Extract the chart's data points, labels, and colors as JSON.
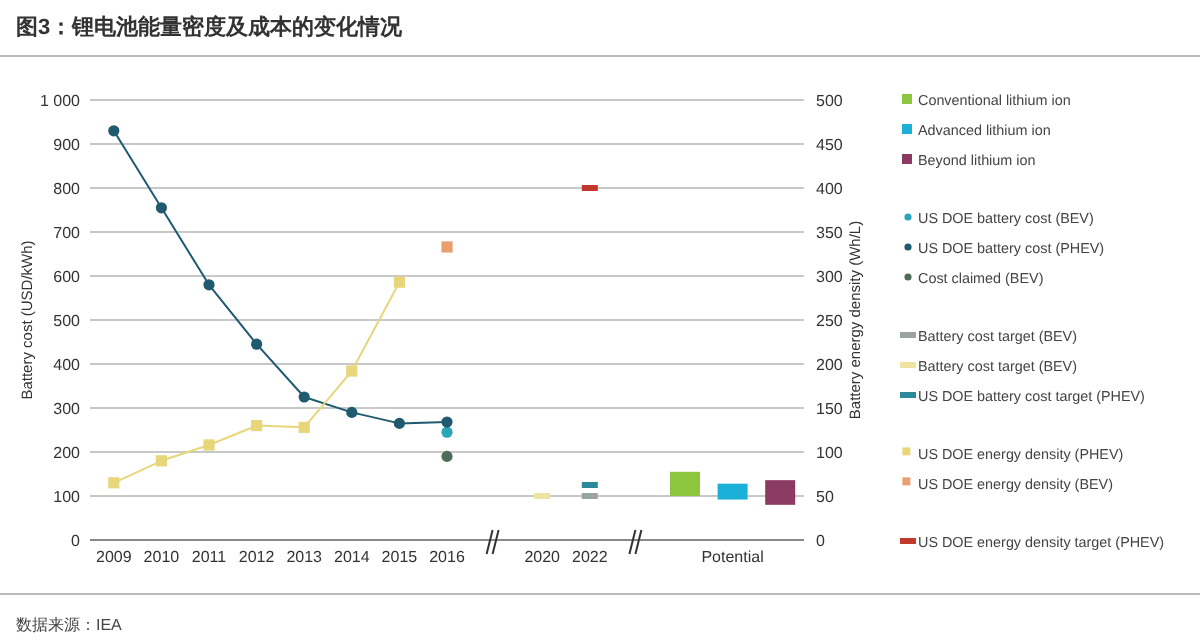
{
  "chart_data": {
    "type": "scatter",
    "title": "图3：锂电池能量密度及成本的变化情况",
    "ylabel": "Battery cost (USD/kWh)",
    "y2label": "Battery energy density (Wh/L)",
    "annotations": [
      "数据来源：IEA"
    ],
    "categories": [
      "2009",
      "2010",
      "2011",
      "2012",
      "2013",
      "2014",
      "2015",
      "2016",
      null,
      "2020",
      "2022",
      null,
      null,
      "Potential",
      null
    ],
    "ylim": [
      0,
      1000
    ],
    "yticks": [
      0,
      100,
      200,
      300,
      400,
      500,
      600,
      700,
      800,
      900,
      {
        "value": 1000,
        "label": "1 000"
      }
    ],
    "y2lim": [
      0,
      500
    ],
    "y2ticks": [
      0,
      50,
      100,
      150,
      200,
      250,
      300,
      350,
      400,
      450,
      500
    ],
    "grid": "y",
    "legend": "right",
    "series": [
      {
        "name": "Conventional lithium ion",
        "type": "bar",
        "color": "#8cc63f",
        "values": [
          null,
          null,
          null,
          null,
          null,
          null,
          null,
          null,
          null,
          null,
          null,
          null,
          55,
          null,
          null
        ],
        "base": [
          null,
          null,
          null,
          null,
          null,
          null,
          null,
          null,
          null,
          null,
          null,
          null,
          100,
          null,
          null
        ]
      },
      {
        "name": "Advanced lithium ion",
        "type": "bar",
        "color": "#1ab0d8",
        "values": [
          null,
          null,
          null,
          null,
          null,
          null,
          null,
          null,
          null,
          null,
          null,
          null,
          null,
          36,
          null
        ],
        "base": [
          null,
          null,
          null,
          null,
          null,
          null,
          null,
          null,
          null,
          null,
          null,
          null,
          null,
          92,
          null
        ]
      },
      {
        "name": "Beyond lithium ion",
        "type": "bar",
        "color": "#8b3a62",
        "values": [
          null,
          null,
          null,
          null,
          null,
          null,
          null,
          null,
          null,
          null,
          null,
          null,
          null,
          null,
          56
        ],
        "base": [
          null,
          null,
          null,
          null,
          null,
          null,
          null,
          null,
          null,
          null,
          null,
          null,
          null,
          null,
          80
        ]
      },
      {
        "name": "US DOE battery cost (BEV)",
        "marker": "circle",
        "color": "#2aa6b8",
        "values": [
          null,
          null,
          null,
          null,
          null,
          null,
          null,
          245,
          null,
          null,
          null,
          null,
          null,
          null,
          null
        ]
      },
      {
        "name": "US DOE battery cost (PHEV)",
        "type": "line",
        "marker": "circle",
        "color": "#1f5a6e",
        "values": [
          930,
          755,
          580,
          445,
          325,
          290,
          265,
          268,
          null,
          null,
          null,
          null,
          null,
          null,
          null
        ]
      },
      {
        "name": "Cost claimed (BEV)",
        "marker": "circle",
        "color": "#4e6b57",
        "values": [
          null,
          null,
          null,
          null,
          null,
          null,
          null,
          190,
          null,
          null,
          null,
          null,
          null,
          null,
          null
        ]
      },
      {
        "name": "Battery cost target (BEV)",
        "color": "#9aa5a0",
        "values": [
          null,
          null,
          null,
          null,
          null,
          null,
          null,
          null,
          null,
          null,
          100,
          null,
          null,
          null,
          null
        ]
      },
      {
        "name": "Battery cost target (BEV)",
        "color": "#eee3a0",
        "values": [
          null,
          null,
          null,
          null,
          null,
          null,
          null,
          null,
          null,
          100,
          null,
          null,
          null,
          null,
          null
        ]
      },
      {
        "name": "US DOE battery cost target (PHEV)",
        "color": "#2a8a9a",
        "values": [
          null,
          null,
          null,
          null,
          null,
          null,
          null,
          null,
          null,
          null,
          125,
          null,
          null,
          null,
          null
        ]
      },
      {
        "name": "US DOE energy density (PHEV)",
        "type": "line",
        "marker": "square",
        "axis": "y2",
        "color": "#e8d67a",
        "values": [
          65,
          90,
          108,
          130,
          128,
          192,
          293,
          null,
          null,
          null,
          null,
          null,
          null,
          null,
          null
        ]
      },
      {
        "name": "US DOE energy density (BEV)",
        "marker": "square",
        "axis": "y2",
        "color": "#e8a070",
        "values": [
          null,
          null,
          null,
          null,
          null,
          null,
          null,
          333,
          null,
          null,
          null,
          null,
          null,
          null,
          null
        ]
      },
      {
        "name": "US DOE energy density target (PHEV)",
        "axis": "y2",
        "color": "#c0392b",
        "values": [
          null,
          null,
          null,
          null,
          null,
          null,
          null,
          null,
          null,
          null,
          400,
          null,
          null,
          null,
          null
        ]
      }
    ]
  }
}
